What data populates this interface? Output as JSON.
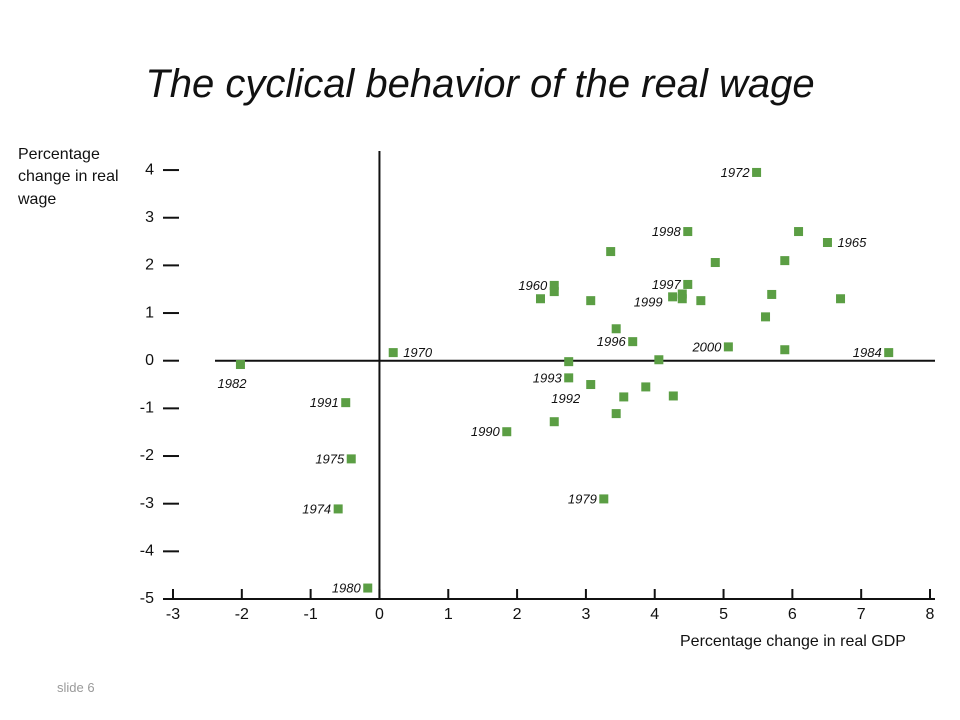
{
  "chart_data": {
    "type": "scatter",
    "title": "The cyclical behavior of the real wage",
    "x_label": "Percentage change in real GDP",
    "y_label": "Percentage change in real wage",
    "footer": "slide 6",
    "color": "#5b9e44",
    "xlim": [
      -3,
      8
    ],
    "ylim": [
      -5,
      4.4
    ],
    "xticks": [
      -3,
      -2,
      -1,
      0,
      1,
      2,
      3,
      4,
      5,
      6,
      7,
      8
    ],
    "yticks": [
      4,
      3,
      2,
      1,
      0,
      -1,
      -2,
      -3,
      -4,
      -5
    ],
    "x": [
      5.48,
      4.48,
      6.51,
      2.54,
      2.54,
      2.34,
      4.48,
      4.26,
      4.4,
      4.4,
      3.68,
      5.07,
      7.4,
      0.2,
      -2.02,
      2.75,
      2.54,
      -0.49,
      1.85,
      -0.41,
      -0.6,
      3.26,
      -0.17,
      3.36,
      4.88,
      6.09,
      5.89,
      5.7,
      6.7,
      3.07,
      4.67,
      5.61,
      3.44,
      5.89,
      2.75,
      4.06,
      3.07,
      3.87,
      3.55,
      4.27,
      3.44
    ],
    "values": [
      3.95,
      2.71,
      2.48,
      1.58,
      1.45,
      1.3,
      1.6,
      1.34,
      1.4,
      1.3,
      0.4,
      0.29,
      0.17,
      0.17,
      -0.08,
      -0.36,
      -1.28,
      -0.88,
      -1.49,
      -2.06,
      -3.11,
      -2.9,
      -4.77,
      2.29,
      2.06,
      2.71,
      2.1,
      1.39,
      1.3,
      1.26,
      1.26,
      0.92,
      0.67,
      0.23,
      -0.02,
      0.02,
      -0.5,
      -0.55,
      -0.76,
      -0.74,
      -1.11
    ],
    "labels": [
      "1972",
      "1998",
      "1965",
      "1960",
      null,
      null,
      "1997",
      "1999",
      null,
      null,
      "1996",
      "2000",
      "1984",
      "1970",
      "1982",
      "1993",
      "1992",
      "1991",
      "1990",
      "1975",
      "1974",
      "1979",
      "1980",
      null,
      null,
      null,
      null,
      null,
      null,
      null,
      null,
      null,
      null,
      null,
      null,
      null,
      null,
      null,
      null,
      null,
      null
    ]
  }
}
